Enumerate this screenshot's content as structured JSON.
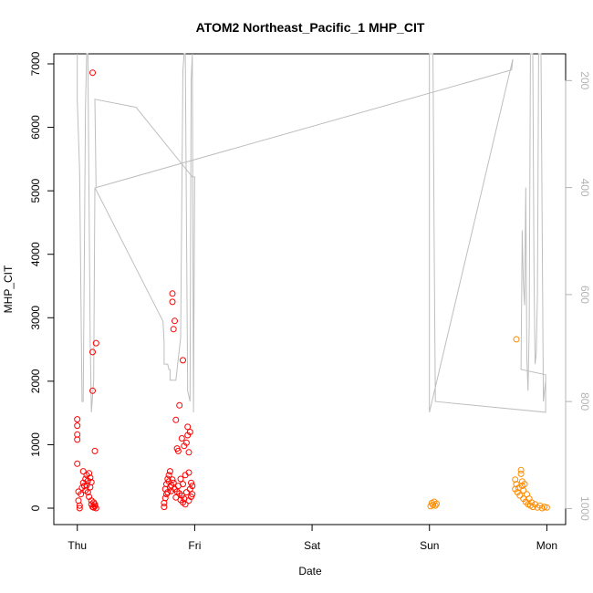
{
  "chart_data": {
    "type": "scatter",
    "title": "ATOM2 Northeast_Pacific_1 MHP_CIT",
    "xlabel": "Date",
    "ylabel": "MHP_CIT",
    "x_unit": "day",
    "x_ticks": [
      {
        "value": 0,
        "label": "Thu"
      },
      {
        "value": 1,
        "label": "Fri"
      },
      {
        "value": 2,
        "label": "Sat"
      },
      {
        "value": 3,
        "label": "Sun"
      },
      {
        "value": 4,
        "label": "Mon"
      }
    ],
    "xlim": [
      -0.2,
      4.16
    ],
    "ylim": [
      0,
      7000
    ],
    "y_ticks": [
      0,
      1000,
      2000,
      3000,
      4000,
      5000,
      6000,
      7000
    ],
    "y2": {
      "label": "",
      "reversed": true,
      "ticks": [
        200,
        400,
        600,
        800,
        1000
      ],
      "ylim": [
        1030,
        150
      ],
      "color": "#b3b3b3"
    },
    "grid": false,
    "legend": "none",
    "series": [
      {
        "color": "#ff0000",
        "marker": "open-circle",
        "points": [
          [
            0.0,
            1400
          ],
          [
            0.0,
            1300
          ],
          [
            0.0,
            1160
          ],
          [
            0.0,
            1080
          ],
          [
            0.0,
            700
          ],
          [
            0.01,
            260
          ],
          [
            0.01,
            120
          ],
          [
            0.02,
            40
          ],
          [
            0.02,
            0
          ],
          [
            0.03,
            220
          ],
          [
            0.04,
            320
          ],
          [
            0.05,
            400
          ],
          [
            0.05,
            580
          ],
          [
            0.06,
            350
          ],
          [
            0.07,
            460
          ],
          [
            0.07,
            280
          ],
          [
            0.08,
            520
          ],
          [
            0.08,
            360
          ],
          [
            0.09,
            430
          ],
          [
            0.09,
            250
          ],
          [
            0.1,
            550
          ],
          [
            0.1,
            180
          ],
          [
            0.11,
            330
          ],
          [
            0.11,
            480
          ],
          [
            0.12,
            410
          ],
          [
            0.12,
            120
          ],
          [
            0.12,
            60
          ],
          [
            0.13,
            6860
          ],
          [
            0.13,
            2460
          ],
          [
            0.13,
            1850
          ],
          [
            0.13,
            20
          ],
          [
            0.14,
            90
          ],
          [
            0.14,
            10
          ],
          [
            0.15,
            30
          ],
          [
            0.15,
            900
          ],
          [
            0.15,
            60
          ],
          [
            0.16,
            2600
          ],
          [
            0.16,
            0
          ],
          [
            0.74,
            20
          ],
          [
            0.74,
            80
          ],
          [
            0.75,
            160
          ],
          [
            0.75,
            300
          ],
          [
            0.76,
            220
          ],
          [
            0.76,
            380
          ],
          [
            0.77,
            250
          ],
          [
            0.77,
            460
          ],
          [
            0.78,
            520
          ],
          [
            0.78,
            420
          ],
          [
            0.79,
            580
          ],
          [
            0.79,
            330
          ],
          [
            0.8,
            360
          ],
          [
            0.8,
            270
          ],
          [
            0.81,
            3380
          ],
          [
            0.81,
            3250
          ],
          [
            0.81,
            450
          ],
          [
            0.82,
            2820
          ],
          [
            0.82,
            400
          ],
          [
            0.83,
            2950
          ],
          [
            0.83,
            300
          ],
          [
            0.84,
            1390
          ],
          [
            0.84,
            170
          ],
          [
            0.85,
            260
          ],
          [
            0.85,
            940
          ],
          [
            0.86,
            900
          ],
          [
            0.86,
            350
          ],
          [
            0.87,
            230
          ],
          [
            0.87,
            1620
          ],
          [
            0.88,
            130
          ],
          [
            0.88,
            460
          ],
          [
            0.89,
            1100
          ],
          [
            0.89,
            200
          ],
          [
            0.9,
            2330
          ],
          [
            0.9,
            90
          ],
          [
            0.9,
            380
          ],
          [
            0.91,
            980
          ],
          [
            0.91,
            150
          ],
          [
            0.92,
            520
          ],
          [
            0.92,
            60
          ],
          [
            0.93,
            1030
          ],
          [
            0.93,
            250
          ],
          [
            0.94,
            1280
          ],
          [
            0.94,
            1150
          ],
          [
            0.95,
            880
          ],
          [
            0.95,
            560
          ],
          [
            0.95,
            120
          ],
          [
            0.96,
            1200
          ],
          [
            0.96,
            300
          ],
          [
            0.97,
            400
          ],
          [
            0.97,
            180
          ],
          [
            0.98,
            350
          ],
          [
            0.98,
            220
          ]
        ]
      },
      {
        "color": "#ff8c00",
        "marker": "open-circle",
        "points": [
          [
            3.01,
            30
          ],
          [
            3.02,
            80
          ],
          [
            3.03,
            50
          ],
          [
            3.04,
            100
          ],
          [
            3.05,
            40
          ],
          [
            3.06,
            70
          ],
          [
            3.74,
            2660
          ],
          [
            3.73,
            450
          ],
          [
            3.73,
            300
          ],
          [
            3.74,
            380
          ],
          [
            3.75,
            250
          ],
          [
            3.76,
            320
          ],
          [
            3.77,
            200
          ],
          [
            3.78,
            600
          ],
          [
            3.78,
            540
          ],
          [
            3.79,
            420
          ],
          [
            3.79,
            350
          ],
          [
            3.8,
            280
          ],
          [
            3.8,
            150
          ],
          [
            3.81,
            380
          ],
          [
            3.82,
            100
          ],
          [
            3.83,
            220
          ],
          [
            3.84,
            60
          ],
          [
            3.85,
            150
          ],
          [
            3.86,
            40
          ],
          [
            3.87,
            90
          ],
          [
            3.88,
            20
          ],
          [
            3.9,
            60
          ],
          [
            3.92,
            10
          ],
          [
            3.94,
            40
          ],
          [
            3.96,
            0
          ],
          [
            3.98,
            20
          ],
          [
            4.0,
            10
          ]
        ]
      },
      {
        "color": "#bebebe",
        "marker": "line",
        "axis": "y2",
        "points": [
          [
            0.0,
            150
          ],
          [
            0.0,
            235
          ],
          [
            0.02,
            370
          ],
          [
            0.04,
            800
          ],
          [
            0.05,
            800
          ],
          [
            0.07,
            250
          ],
          [
            0.08,
            150
          ],
          [
            0.09,
            150
          ],
          [
            0.11,
            690
          ],
          [
            0.12,
            820
          ],
          [
            0.14,
            760
          ],
          [
            0.15,
            400
          ],
          [
            0.73,
            650
          ],
          [
            0.74,
            690
          ],
          [
            0.74,
            730
          ],
          [
            0.77,
            730
          ],
          [
            0.78,
            740
          ],
          [
            0.79,
            740
          ],
          [
            0.79,
            760
          ],
          [
            0.84,
            760
          ],
          [
            0.88,
            680
          ],
          [
            0.9,
            180
          ],
          [
            0.91,
            150
          ],
          [
            0.92,
            150
          ],
          [
            0.94,
            780
          ],
          [
            0.96,
            800
          ],
          [
            0.97,
            200
          ],
          [
            0.98,
            150
          ],
          [
            0.99,
            820
          ],
          [
            1.0,
            380
          ],
          [
            0.98,
            380
          ],
          [
            0.5,
            250
          ],
          [
            0.15,
            235
          ],
          [
            0.16,
            400
          ],
          [
            3.7,
            180
          ],
          [
            3.71,
            160
          ],
          [
            3.0,
            820
          ],
          [
            3.0,
            150
          ],
          [
            3.03,
            150
          ],
          [
            3.04,
            500
          ],
          [
            3.05,
            800
          ],
          [
            3.99,
            820
          ],
          [
            3.99,
            750
          ],
          [
            3.78,
            740
          ],
          [
            3.79,
            480
          ],
          [
            3.8,
            580
          ],
          [
            3.81,
            620
          ],
          [
            3.82,
            400
          ],
          [
            3.83,
            720
          ],
          [
            3.84,
            780
          ],
          [
            3.85,
            660
          ],
          [
            3.86,
            150
          ],
          [
            3.88,
            150
          ],
          [
            3.89,
            550
          ],
          [
            3.9,
            730
          ],
          [
            3.91,
            710
          ],
          [
            3.92,
            600
          ],
          [
            3.93,
            150
          ],
          [
            3.95,
            150
          ],
          [
            3.97,
            800
          ],
          [
            3.99,
            760
          ]
        ]
      }
    ]
  }
}
